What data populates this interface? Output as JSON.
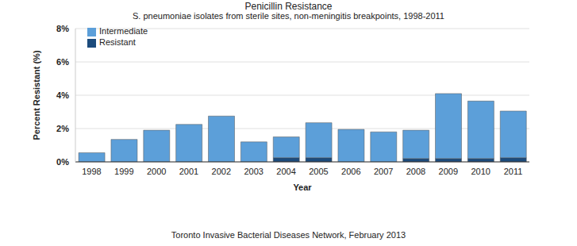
{
  "chart_data": {
    "type": "bar",
    "title": "Penicillin Resistance",
    "subtitle": "S. pneumoniae isolates from sterile sites, non-meningitis breakpoints, 1998-2011",
    "annotation": "Toronto Invasive Bacterial Diseases Network, February 2013",
    "x_label": "Year",
    "y_label": "Percent Resistant (%)",
    "categories": [
      "1998",
      "1999",
      "2000",
      "2001",
      "2002",
      "2003",
      "2004",
      "2005",
      "2006",
      "2007",
      "2008",
      "2009",
      "2010",
      "2011"
    ],
    "series": [
      {
        "name": "Resistant",
        "color": "#1c4b7c",
        "values": [
          0,
          0,
          0,
          0,
          0,
          0,
          0.25,
          0.25,
          0,
          0,
          0.2,
          0.2,
          0.2,
          0.25
        ]
      },
      {
        "name": "Intermediate",
        "color": "#5c9fd9",
        "values": [
          0.55,
          1.35,
          1.9,
          2.25,
          2.75,
          1.2,
          1.25,
          2.1,
          1.95,
          1.8,
          1.7,
          3.9,
          3.45,
          2.8
        ]
      }
    ],
    "stacked": true,
    "ylim": [
      0,
      8
    ],
    "yticks": [
      {
        "value": 0,
        "label": "0%"
      },
      {
        "value": 2,
        "label": "2%"
      },
      {
        "value": 4,
        "label": "4%"
      },
      {
        "value": 6,
        "label": "6%"
      },
      {
        "value": 8,
        "label": "8%"
      }
    ],
    "grid": true,
    "legend": "top-left"
  }
}
